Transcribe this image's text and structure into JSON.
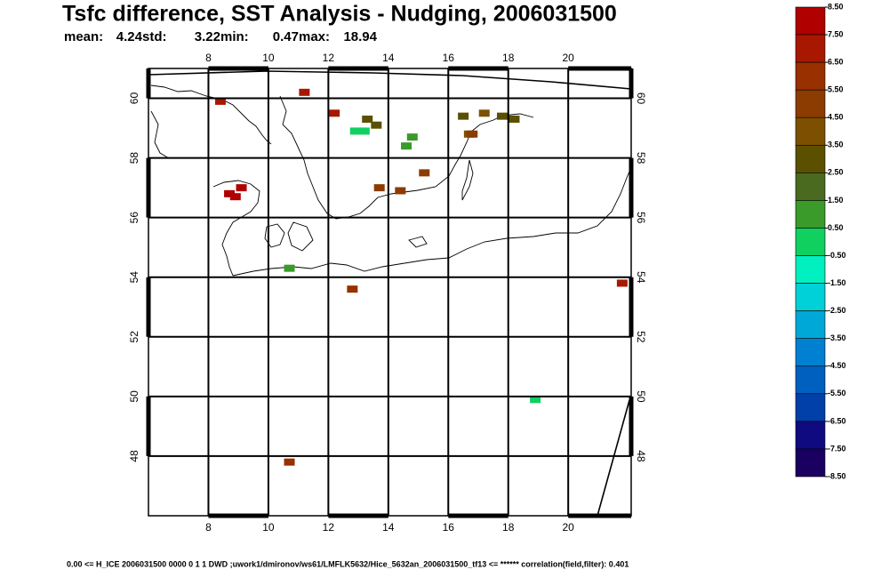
{
  "chart_data": {
    "type": "map",
    "title": "Tsfc difference, SST Analysis - Nudging, 2006031500",
    "stats": [
      {
        "label": "mean:",
        "value": 4.24
      },
      {
        "label": "std:",
        "value": 3.22
      },
      {
        "label": "min:",
        "value": 0.47
      },
      {
        "label": "max:",
        "value": 18.94
      }
    ],
    "xlim": [
      6,
      22.1
    ],
    "ylim": [
      46,
      61
    ],
    "xticks": [
      8,
      10,
      12,
      14,
      16,
      18,
      20
    ],
    "yticks": [
      48,
      50,
      52,
      54,
      56,
      58,
      60
    ],
    "grid": true,
    "colorbar": {
      "ticks": [
        {
          "value": 8.5,
          "label": "8.50"
        },
        {
          "value": 7.5,
          "label": "7.50"
        },
        {
          "value": 6.5,
          "label": "6.50"
        },
        {
          "value": 5.5,
          "label": "5.50"
        },
        {
          "value": 4.5,
          "label": "4.50"
        },
        {
          "value": 3.5,
          "label": "3.50"
        },
        {
          "value": 2.5,
          "label": "2.50"
        },
        {
          "value": 1.5,
          "label": "1.50"
        },
        {
          "value": 0.5,
          "label": "0.50"
        },
        {
          "value": -0.5,
          "label": "-0.50"
        },
        {
          "value": -1.5,
          "label": "-1.50"
        },
        {
          "value": -2.5,
          "label": "-2.50"
        },
        {
          "value": -3.5,
          "label": "-3.50"
        },
        {
          "value": -4.5,
          "label": "-4.50"
        },
        {
          "value": -5.5,
          "label": "-5.50"
        },
        {
          "value": -6.5,
          "label": "-6.50"
        },
        {
          "value": -7.5,
          "label": "-7.50"
        },
        {
          "value": -8.5,
          "label": "-8.50"
        }
      ],
      "colors": [
        "#b00000",
        "#a81800",
        "#983000",
        "#8c3c00",
        "#7c5000",
        "#5a5000",
        "#4a6a20",
        "#3a9a2a",
        "#10d060",
        "#00f0c0",
        "#00d0d8",
        "#00a8d8",
        "#0080d0",
        "#0060c0",
        "#0040a8",
        "#100a80",
        "#1a0060"
      ]
    },
    "cells": {
      "lon": [
        8.7,
        8.9,
        9.1,
        13.2,
        13.6,
        12.9,
        13.3,
        14.6,
        14.8,
        16.5,
        17.2,
        17.8,
        18.2,
        16.7,
        11.2,
        8.4,
        12.2,
        16.8,
        10.7,
        14.4,
        13.7,
        15.2,
        21.8,
        10.7,
        12.8,
        18.9
      ],
      "lat": [
        56.8,
        56.7,
        57.0,
        58.9,
        59.1,
        58.9,
        59.3,
        58.4,
        58.7,
        59.4,
        59.5,
        59.4,
        59.3,
        58.8,
        60.2,
        59.9,
        59.5,
        58.8,
        54.3,
        56.9,
        57.0,
        57.5,
        53.8,
        47.8,
        53.6,
        49.9
      ],
      "values": [
        7.8,
        7.6,
        7.9,
        0.3,
        3.2,
        0.2,
        3.3,
        0.6,
        0.8,
        3.2,
        3.5,
        3.3,
        2.8,
        4.1,
        7.2,
        7.0,
        6.8,
        4.8,
        1.2,
        5.2,
        5.0,
        5.4,
        7.1,
        6.0,
        5.8,
        -0.4
      ]
    },
    "footer": "0.00  <=  H_ICE 2006031500 0000 0 1 1 DWD ;uwork1/dmironov/ws61/LMFLK5632/Hice_5632an_2006031500_tf13  <=  ******    correlation(field,filter): 0.401"
  }
}
